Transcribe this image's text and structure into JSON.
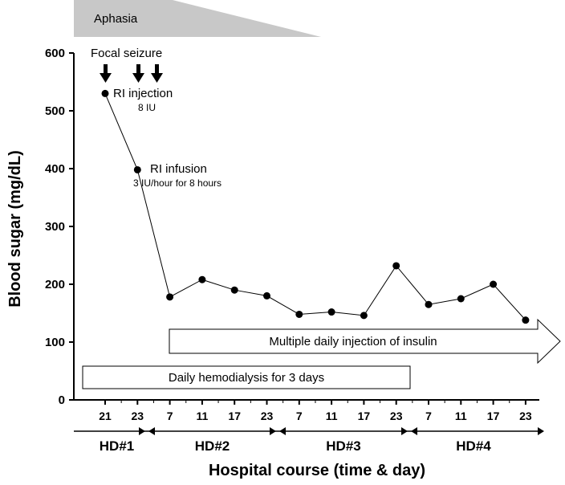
{
  "chart_data": {
    "type": "line",
    "xlabel": "Hospital course (time & day)",
    "ylabel": "Blood sugar (mg/dL)",
    "ylim": [
      0,
      600
    ],
    "yticks": [
      0,
      100,
      200,
      300,
      400,
      500,
      600
    ],
    "x_ticks": [
      "21",
      "23",
      "7",
      "11",
      "17",
      "23",
      "7",
      "11",
      "17",
      "23",
      "7",
      "11",
      "17",
      "23"
    ],
    "values": [
      530,
      398,
      178,
      208,
      190,
      180,
      148,
      152,
      146,
      232,
      165,
      175,
      200,
      138
    ],
    "grid": false,
    "hospital_days": [
      "HD#1",
      "HD#2",
      "HD#3",
      "HD#4"
    ],
    "annotations": {
      "aphasia": "Aphasia",
      "focal_seizure": "Focal seizure",
      "ri_injection": "RI injection",
      "ri_injection_dose": "8 IU",
      "ri_infusion": "RI infusion",
      "ri_infusion_dose": "3 IU/hour for 8 hours",
      "multiple_injection": "Multiple daily injection of insulin",
      "hemodialysis": "Daily hemodialysis for 3 days"
    }
  }
}
